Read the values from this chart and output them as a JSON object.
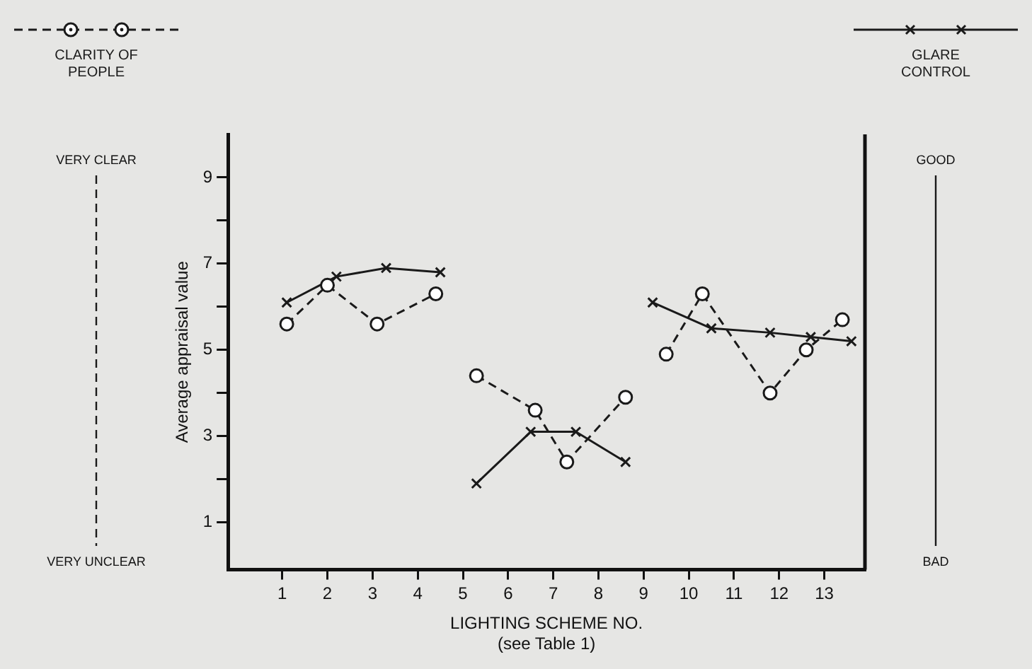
{
  "chart_data": {
    "type": "line",
    "xlabel": "LIGHTING SCHEME NO.\n(see Table 1)",
    "ylabel": "Average appraisal value",
    "xlim": [
      -0.2,
      13.9
    ],
    "xticks": [
      1,
      2,
      3,
      4,
      5,
      6,
      7,
      8,
      9,
      10,
      11,
      12,
      13
    ],
    "ylim": [
      -0.1,
      10
    ],
    "yticks": [
      1,
      {
        "value": 2,
        "label": null
      },
      3,
      {
        "value": 4,
        "label": null
      },
      5,
      {
        "value": 6,
        "label": null
      },
      7,
      {
        "value": 8,
        "label": null
      },
      9
    ],
    "grid": false,
    "legend": "top",
    "annotations": [
      "VERY CLEAR",
      "VERY UNCLEAR",
      "GOOD",
      "BAD"
    ],
    "series": [
      {
        "name": "CLARITY OF PEOPLE",
        "color": "#1a1a1a",
        "marker": "circle",
        "line_style": "dashed",
        "x": [
          1.1,
          2,
          3.1,
          4.4,
          5,
          5.3,
          6.6,
          7.3,
          8.6,
          9,
          9.5,
          10.3,
          11.8,
          12.6,
          13.4
        ],
        "values": [
          5.6,
          6.5,
          5.6,
          6.3,
          null,
          4.4,
          3.6,
          2.4,
          3.9,
          null,
          4.9,
          6.3,
          4,
          5,
          5.7
        ]
      },
      {
        "name": "GLARE CONTROL",
        "color": "#1a1a1a",
        "marker": "cross",
        "line_style": "solid",
        "x": [
          1.1,
          2.2,
          3.3,
          4.5,
          5,
          5.3,
          6.5,
          7.5,
          8.6,
          9,
          9.2,
          10.5,
          11.8,
          12.7,
          13.6
        ],
        "values": [
          6.1,
          6.7,
          6.9,
          6.8,
          null,
          1.9,
          3.1,
          3.1,
          2.4,
          null,
          6.1,
          5.5,
          5.4,
          5.3,
          5.2
        ]
      }
    ]
  }
}
